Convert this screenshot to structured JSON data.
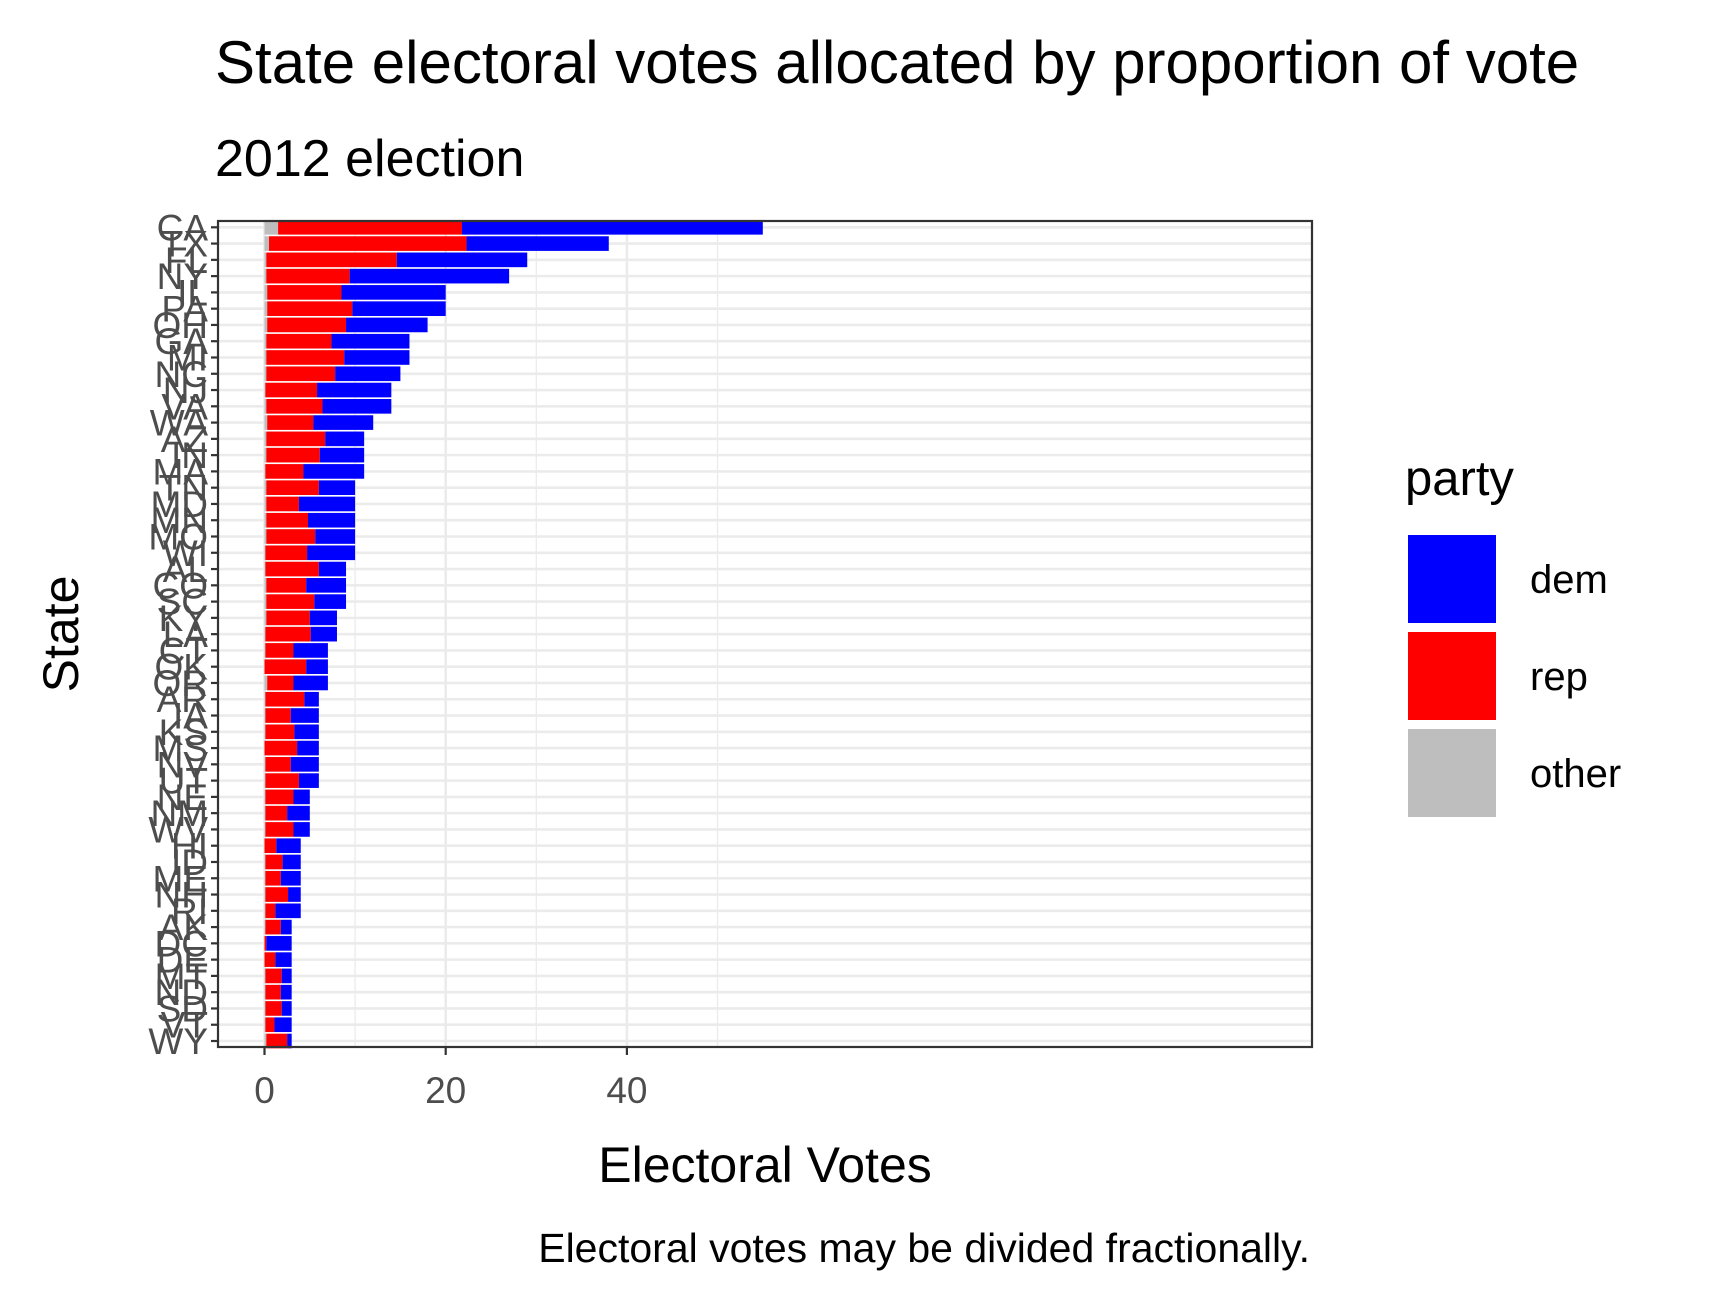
{
  "chart_data": {
    "type": "bar",
    "orientation": "horizontal",
    "stacked": true,
    "title": "State electoral votes allocated by proportion of vote",
    "subtitle": "2012 election",
    "xlabel": "Electoral Votes",
    "ylabel": "State",
    "caption": "Electoral votes may be divided fractionally.",
    "xlim": [
      0,
      55
    ],
    "xticks": [
      0,
      20,
      40
    ],
    "grid": true,
    "legend": {
      "title": "party",
      "position": "right",
      "entries": [
        {
          "key": "dem",
          "label": "dem",
          "color": "#0000ff"
        },
        {
          "key": "rep",
          "label": "rep",
          "color": "#ff0000"
        },
        {
          "key": "other",
          "label": "other",
          "color": "#bebebe"
        }
      ]
    },
    "stack_order": [
      "other",
      "rep",
      "dem"
    ],
    "categories": [
      "CA",
      "TX",
      "FL",
      "NY",
      "IL",
      "PA",
      "OH",
      "GA",
      "MI",
      "NC",
      "NJ",
      "VA",
      "WA",
      "AZ",
      "IN",
      "MA",
      "TN",
      "MD",
      "MN",
      "MO",
      "WI",
      "AL",
      "CO",
      "SC",
      "KY",
      "LA",
      "CT",
      "OK",
      "OR",
      "AR",
      "IA",
      "KS",
      "MS",
      "NV",
      "UT",
      "NE",
      "NM",
      "WV",
      "HI",
      "ID",
      "ME",
      "NH",
      "RI",
      "AK",
      "DC",
      "DE",
      "MT",
      "ND",
      "SD",
      "VT",
      "WY"
    ],
    "series": [
      {
        "name": "other",
        "values": [
          1.5,
          0.5,
          0.2,
          0.2,
          0.3,
          0.3,
          0.3,
          0.2,
          0.2,
          0.2,
          0.1,
          0.2,
          0.3,
          0.2,
          0.2,
          0.1,
          0.2,
          0.2,
          0.2,
          0.2,
          0.1,
          0.1,
          0.2,
          0.2,
          0.2,
          0.1,
          0.1,
          0.0,
          0.3,
          0.1,
          0.1,
          0.1,
          0.0,
          0.1,
          0.1,
          0.1,
          0.1,
          0.1,
          0.0,
          0.1,
          0.1,
          0.1,
          0.1,
          0.1,
          0.0,
          0.0,
          0.1,
          0.1,
          0.1,
          0.1,
          0.2
        ]
      },
      {
        "name": "rep",
        "values": [
          20.3,
          21.8,
          14.4,
          9.2,
          8.2,
          9.4,
          8.7,
          7.2,
          8.6,
          7.6,
          5.7,
          6.2,
          5.1,
          6.5,
          5.9,
          4.2,
          5.8,
          3.6,
          4.6,
          5.4,
          4.6,
          5.9,
          4.4,
          5.3,
          4.8,
          5.0,
          3.1,
          4.6,
          2.9,
          4.3,
          2.8,
          3.2,
          3.6,
          2.8,
          3.7,
          3.1,
          2.4,
          3.1,
          1.3,
          1.9,
          1.7,
          2.5,
          1.1,
          1.7,
          0.2,
          1.2,
          1.8,
          1.7,
          1.8,
          1.0,
          2.3
        ]
      },
      {
        "name": "dem",
        "values": [
          33.2,
          15.7,
          14.4,
          17.6,
          11.5,
          10.3,
          9.0,
          8.6,
          7.2,
          7.2,
          8.2,
          7.6,
          6.6,
          4.3,
          4.9,
          6.7,
          4.0,
          6.2,
          5.2,
          4.4,
          5.3,
          3.0,
          4.4,
          3.5,
          3.0,
          2.9,
          3.8,
          2.4,
          3.8,
          1.6,
          3.1,
          2.7,
          2.4,
          3.1,
          2.2,
          1.8,
          2.5,
          1.8,
          2.7,
          2.0,
          2.2,
          1.4,
          2.8,
          1.2,
          2.8,
          1.8,
          1.1,
          1.2,
          1.1,
          1.9,
          0.5
        ]
      }
    ]
  }
}
